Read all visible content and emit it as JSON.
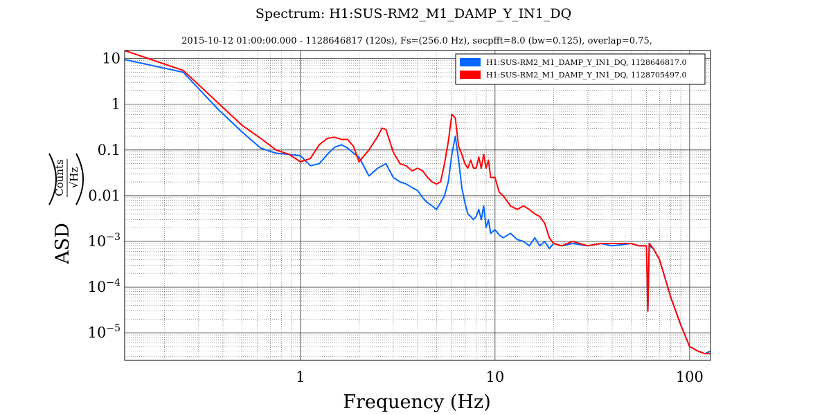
{
  "chart_data": {
    "type": "line",
    "title": "Spectrum: H1:SUS-RM2_M1_DAMP_Y_IN1_DQ",
    "subtitle": "2015-10-12 01:00:00.000 - 1128646817 (120s), Fs=(256.0 Hz), secpfft=8.0 (bw=0.125), overlap=0.75,",
    "xlabel": "Frequency (Hz)",
    "ylabel": "ASD",
    "ylabel_unit_numerator": "Counts",
    "ylabel_unit_denominator": "√Hz",
    "xscale": "log",
    "yscale": "log",
    "xlim": [
      0.125,
      128
    ],
    "ylim": [
      2.5e-06,
      15
    ],
    "grid": true,
    "legend_position": "top-right",
    "x_ticks": [
      {
        "value": 1,
        "label": "1"
      },
      {
        "value": 10,
        "label": "10"
      },
      {
        "value": 100,
        "label": "100"
      }
    ],
    "y_ticks": [
      {
        "value": 10,
        "mant": "10",
        "exp": ""
      },
      {
        "value": 1,
        "mant": "1",
        "exp": ""
      },
      {
        "value": 0.1,
        "mant": "0.1",
        "exp": ""
      },
      {
        "value": 0.01,
        "mant": "0.01",
        "exp": ""
      },
      {
        "value": 0.001,
        "mant": "10",
        "exp": "−3"
      },
      {
        "value": 0.0001,
        "mant": "10",
        "exp": "−4"
      },
      {
        "value": 1e-05,
        "mant": "10",
        "exp": "−5"
      }
    ],
    "series": [
      {
        "name": "H1:SUS-RM2_M1_DAMP_Y_IN1_DQ, 1128646817.0",
        "color": "#0066ff",
        "x": [
          0.125,
          0.25,
          0.375,
          0.5,
          0.625,
          0.75,
          0.875,
          1.0,
          1.125,
          1.25,
          1.375,
          1.5,
          1.625,
          1.75,
          1.875,
          2.0,
          2.25,
          2.5,
          2.625,
          2.75,
          3.0,
          3.25,
          3.5,
          3.75,
          4.0,
          4.25,
          4.5,
          4.75,
          5.0,
          5.25,
          5.5,
          5.75,
          6.0,
          6.25,
          6.5,
          6.75,
          7.0,
          7.25,
          7.5,
          7.75,
          8.0,
          8.25,
          8.5,
          8.75,
          9.0,
          9.25,
          9.5,
          10.0,
          10.5,
          11.0,
          12.0,
          13.0,
          14.0,
          15.0,
          16.0,
          17.0,
          18.0,
          19.0,
          20.0,
          22.0,
          25.0,
          30.0,
          35.0,
          40.0,
          50.0,
          55.0,
          58.0,
          60.0,
          61.0,
          62.0,
          65.0,
          70.0,
          75.0,
          80.0,
          90.0,
          100.0,
          105.0,
          110.0,
          120.0,
          128.0
        ],
        "values": [
          9.5,
          5.0,
          0.8,
          0.25,
          0.11,
          0.085,
          0.08,
          0.075,
          0.045,
          0.05,
          0.08,
          0.115,
          0.13,
          0.11,
          0.085,
          0.07,
          0.027,
          0.04,
          0.045,
          0.05,
          0.025,
          0.02,
          0.018,
          0.015,
          0.013,
          0.009,
          0.007,
          0.006,
          0.005,
          0.007,
          0.01,
          0.02,
          0.08,
          0.2,
          0.06,
          0.015,
          0.007,
          0.004,
          0.0035,
          0.003,
          0.0035,
          0.005,
          0.003,
          0.006,
          0.002,
          0.003,
          0.0015,
          0.0018,
          0.0014,
          0.0012,
          0.0015,
          0.0011,
          0.001,
          0.0008,
          0.0012,
          0.0008,
          0.001,
          0.0007,
          0.0009,
          0.0008,
          0.0009,
          0.0008,
          0.0009,
          0.0008,
          0.0009,
          0.0008,
          0.0008,
          0.0008,
          3e-05,
          0.0008,
          0.0007,
          0.0004,
          0.00015,
          6e-05,
          1.5e-05,
          5e-06,
          4.5e-06,
          4e-06,
          3.5e-06,
          4e-06
        ]
      },
      {
        "name": "H1:SUS-RM2_M1_DAMP_Y_IN1_DQ, 1128705497.0",
        "color": "#ff0000",
        "x": [
          0.125,
          0.25,
          0.375,
          0.5,
          0.625,
          0.75,
          0.875,
          1.0,
          1.125,
          1.25,
          1.375,
          1.5,
          1.625,
          1.75,
          1.875,
          2.0,
          2.25,
          2.5,
          2.625,
          2.75,
          3.0,
          3.25,
          3.5,
          3.75,
          4.0,
          4.25,
          4.5,
          4.75,
          5.0,
          5.25,
          5.5,
          5.75,
          6.0,
          6.25,
          6.5,
          6.75,
          7.0,
          7.25,
          7.5,
          7.75,
          8.0,
          8.25,
          8.5,
          8.75,
          9.0,
          9.25,
          9.5,
          10.0,
          10.5,
          11.0,
          12.0,
          13.0,
          14.0,
          15.0,
          16.0,
          17.0,
          18.0,
          19.0,
          20.0,
          22.0,
          25.0,
          30.0,
          35.0,
          40.0,
          50.0,
          55.0,
          58.0,
          60.0,
          61.0,
          62.0,
          65.0,
          70.0,
          75.0,
          80.0,
          90.0,
          100.0,
          105.0,
          110.0,
          120.0,
          128.0
        ],
        "values": [
          15.0,
          5.5,
          1.1,
          0.35,
          0.18,
          0.1,
          0.08,
          0.055,
          0.065,
          0.13,
          0.18,
          0.19,
          0.17,
          0.17,
          0.12,
          0.055,
          0.1,
          0.2,
          0.3,
          0.28,
          0.09,
          0.05,
          0.045,
          0.035,
          0.04,
          0.035,
          0.025,
          0.02,
          0.018,
          0.02,
          0.05,
          0.15,
          0.6,
          0.5,
          0.12,
          0.08,
          0.05,
          0.04,
          0.06,
          0.04,
          0.04,
          0.07,
          0.04,
          0.08,
          0.04,
          0.06,
          0.025,
          0.025,
          0.012,
          0.01,
          0.006,
          0.005,
          0.006,
          0.005,
          0.004,
          0.0035,
          0.0025,
          0.0012,
          0.0009,
          0.0008,
          0.001,
          0.0008,
          0.0009,
          0.0009,
          0.0009,
          0.0008,
          0.0008,
          0.0008,
          3e-05,
          0.0009,
          0.0007,
          0.0004,
          0.00015,
          6e-05,
          1.5e-05,
          5e-06,
          4.5e-06,
          4e-06,
          3.5e-06,
          3.5e-06
        ]
      }
    ]
  }
}
